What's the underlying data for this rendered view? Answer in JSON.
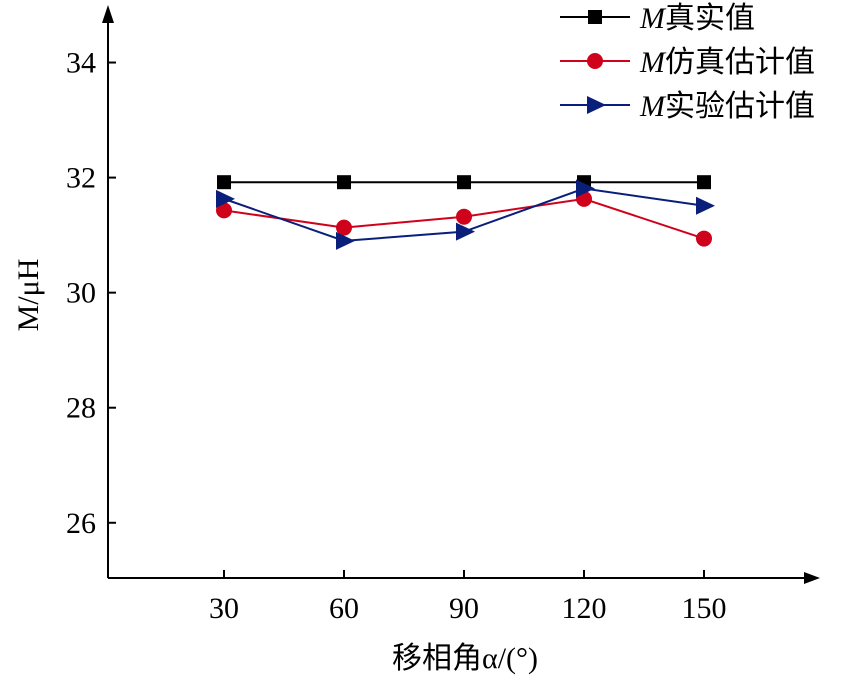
{
  "chart_data": {
    "type": "line",
    "title": "",
    "xlabel": "移相角α/(°)",
    "ylabel": "M/μH",
    "x": [
      30,
      60,
      90,
      120,
      150
    ],
    "xticks": [
      "30",
      "60",
      "90",
      "120",
      "150"
    ],
    "yticks": [
      "26",
      "28",
      "30",
      "32",
      "34"
    ],
    "ytick_values": [
      26,
      28,
      30,
      32,
      34
    ],
    "xlim": [
      1,
      179
    ],
    "ylim": [
      25.04,
      35
    ],
    "grid": false,
    "legend_position": "top-right",
    "series": [
      {
        "name": "M真实值",
        "color": "#000000",
        "marker": "square",
        "values": [
          31.92,
          31.92,
          31.92,
          31.92,
          31.92
        ]
      },
      {
        "name": "M仿真估计值",
        "color": "#d0021b",
        "marker": "circle",
        "values": [
          31.43,
          31.13,
          31.32,
          31.63,
          30.94
        ]
      },
      {
        "name": "M实验估计值",
        "color": "#0a1f7a",
        "marker": "triangle-right",
        "values": [
          31.63,
          30.9,
          31.06,
          31.81,
          31.51
        ]
      }
    ]
  }
}
